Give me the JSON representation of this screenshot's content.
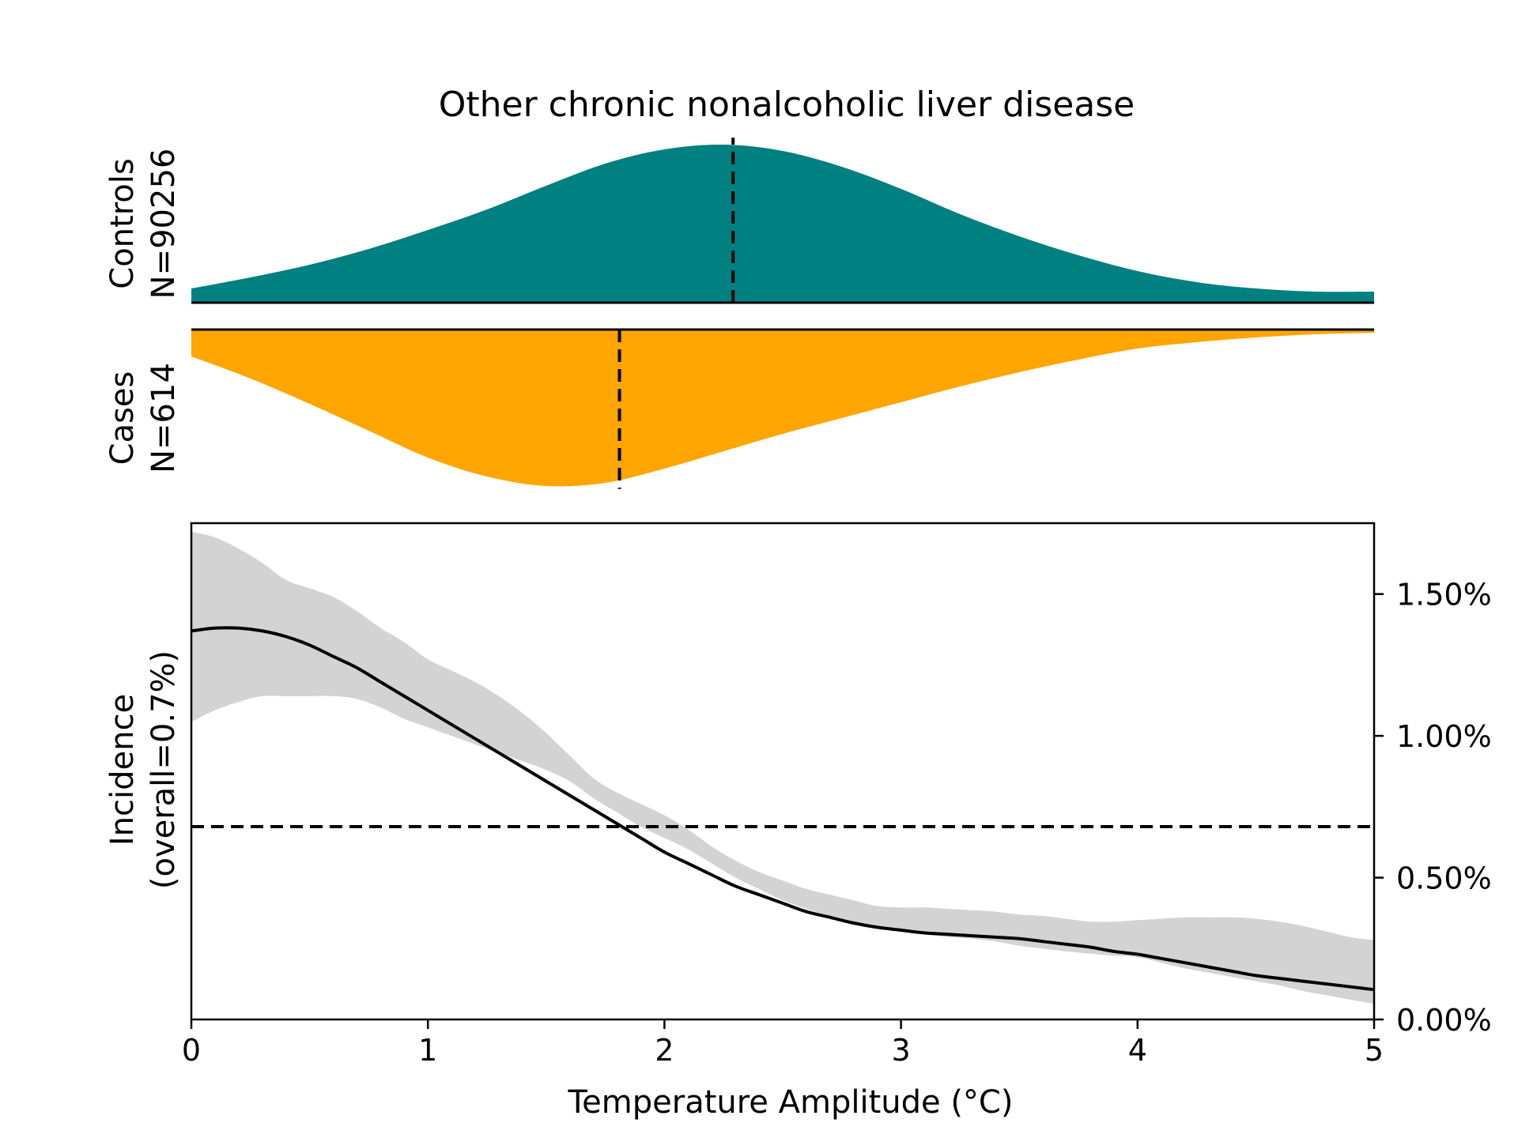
{
  "chart_data": {
    "type": "area",
    "title": "Other chronic nonalcoholic liver disease",
    "colors": {
      "controls": "#008080",
      "cases": "#FFA500",
      "ci_band": "#D3D3D3",
      "line": "#000000"
    },
    "distributions": {
      "controls": {
        "label_line1": "Controls",
        "label_line2": "N=90256",
        "mean": 2.29,
        "x": [
          0,
          0.25,
          0.5,
          0.75,
          1.0,
          1.25,
          1.5,
          1.75,
          2.0,
          2.25,
          2.5,
          2.75,
          3.0,
          3.25,
          3.5,
          3.75,
          4.0,
          4.25,
          4.5,
          4.75,
          5.0
        ],
        "density": [
          0.09,
          0.16,
          0.24,
          0.34,
          0.46,
          0.59,
          0.74,
          0.88,
          0.97,
          1.0,
          0.96,
          0.86,
          0.72,
          0.56,
          0.42,
          0.3,
          0.2,
          0.13,
          0.09,
          0.07,
          0.07
        ]
      },
      "cases": {
        "label_line1": "Cases",
        "label_line2": "N=614",
        "mean": 1.81,
        "x": [
          0,
          0.25,
          0.5,
          0.75,
          1.0,
          1.25,
          1.5,
          1.75,
          2.0,
          2.25,
          2.5,
          2.75,
          3.0,
          3.25,
          3.5,
          3.75,
          4.0,
          4.25,
          4.5,
          4.75,
          5.0
        ],
        "density": [
          0.17,
          0.31,
          0.47,
          0.64,
          0.81,
          0.93,
          0.99,
          0.97,
          0.88,
          0.77,
          0.66,
          0.56,
          0.46,
          0.36,
          0.27,
          0.19,
          0.12,
          0.08,
          0.05,
          0.03,
          0.02
        ]
      }
    },
    "incidence": {
      "xlabel": "Temperature Amplitude (°C)",
      "ylabel_line1": "Incidence",
      "ylabel_line2": "(overall=0.7%)",
      "xlim": [
        0,
        5
      ],
      "ylim": [
        0,
        1.75
      ],
      "xticks": [
        0,
        1,
        2,
        3,
        4,
        5
      ],
      "xtick_labels": [
        "0",
        "1",
        "2",
        "3",
        "4",
        "5"
      ],
      "yticks": [
        0,
        0.5,
        1.0,
        1.5
      ],
      "ytick_labels": [
        "0.00%",
        "0.50%",
        "1.00%",
        "1.50%"
      ],
      "overall": 0.68,
      "x": [
        0,
        0.1,
        0.2,
        0.3,
        0.4,
        0.5,
        0.6,
        0.7,
        0.8,
        0.9,
        1.0,
        1.1,
        1.2,
        1.3,
        1.4,
        1.5,
        1.6,
        1.7,
        1.8,
        1.9,
        2.0,
        2.1,
        2.2,
        2.3,
        2.4,
        2.5,
        2.6,
        2.7,
        2.8,
        2.9,
        3.0,
        3.1,
        3.2,
        3.3,
        3.4,
        3.5,
        3.6,
        3.7,
        3.8,
        3.9,
        4.0,
        4.1,
        4.2,
        4.3,
        4.4,
        4.5,
        4.6,
        4.7,
        4.8,
        4.9,
        5.0
      ],
      "mean": [
        1.37,
        1.38,
        1.38,
        1.37,
        1.35,
        1.32,
        1.28,
        1.24,
        1.19,
        1.14,
        1.09,
        1.04,
        0.99,
        0.94,
        0.89,
        0.84,
        0.79,
        0.74,
        0.69,
        0.64,
        0.59,
        0.55,
        0.51,
        0.47,
        0.44,
        0.41,
        0.38,
        0.36,
        0.34,
        0.325,
        0.315,
        0.305,
        0.3,
        0.295,
        0.29,
        0.285,
        0.275,
        0.265,
        0.255,
        0.24,
        0.23,
        0.215,
        0.2,
        0.185,
        0.17,
        0.155,
        0.145,
        0.135,
        0.125,
        0.115,
        0.105
      ],
      "upper": [
        1.72,
        1.7,
        1.66,
        1.61,
        1.55,
        1.52,
        1.49,
        1.44,
        1.38,
        1.33,
        1.27,
        1.23,
        1.19,
        1.14,
        1.08,
        1.01,
        0.93,
        0.85,
        0.8,
        0.76,
        0.72,
        0.67,
        0.61,
        0.56,
        0.52,
        0.49,
        0.46,
        0.44,
        0.42,
        0.4,
        0.395,
        0.395,
        0.39,
        0.385,
        0.38,
        0.37,
        0.365,
        0.355,
        0.345,
        0.345,
        0.35,
        0.355,
        0.36,
        0.36,
        0.36,
        0.355,
        0.345,
        0.33,
        0.31,
        0.29,
        0.28
      ],
      "lower": [
        1.05,
        1.09,
        1.12,
        1.14,
        1.14,
        1.14,
        1.14,
        1.13,
        1.1,
        1.06,
        1.03,
        1.0,
        0.97,
        0.94,
        0.91,
        0.88,
        0.84,
        0.78,
        0.73,
        0.68,
        0.64,
        0.6,
        0.55,
        0.5,
        0.46,
        0.42,
        0.39,
        0.365,
        0.345,
        0.325,
        0.31,
        0.3,
        0.29,
        0.285,
        0.275,
        0.26,
        0.25,
        0.24,
        0.232,
        0.225,
        0.22,
        0.2,
        0.18,
        0.165,
        0.15,
        0.135,
        0.12,
        0.1,
        0.085,
        0.07,
        0.055
      ]
    }
  }
}
